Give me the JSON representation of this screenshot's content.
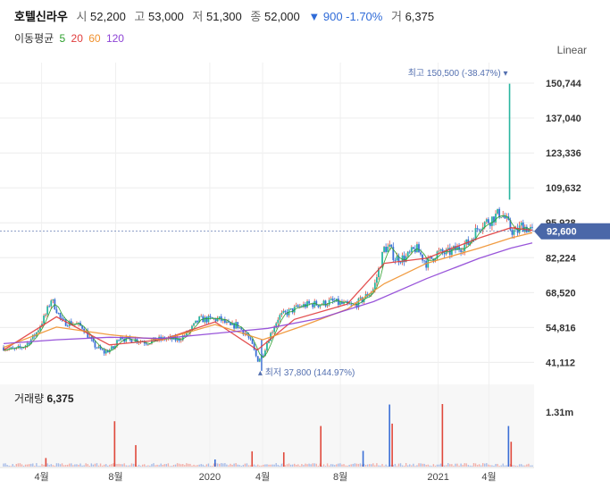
{
  "header": {
    "stock_name": "호텔신라우",
    "open_label": "시",
    "open_value": "52,200",
    "high_label": "고",
    "high_value": "53,000",
    "low_label": "저",
    "low_value": "51,300",
    "close_label": "종",
    "close_value": "52,000",
    "change_value": "▼ 900 -1.70%",
    "volume_label": "거",
    "volume_value": "6,375"
  },
  "moving_average": {
    "label": "이동평균",
    "periods": [
      {
        "text": "5",
        "color": "#2ca02c"
      },
      {
        "text": "20",
        "color": "#e03c3c"
      },
      {
        "text": "60",
        "color": "#f0912e"
      },
      {
        "text": "120",
        "color": "#8e44d6"
      }
    ]
  },
  "scale_toggle": "Linear",
  "volume_panel": {
    "label": "거래량",
    "value": "6,375",
    "axis_label": "1.31m"
  },
  "colors": {
    "up": "#e0493c",
    "down": "#3b6fd6",
    "up_fill": "#2bb5a0",
    "current_price_tag": "#4a67a8",
    "background": "#ffffff"
  },
  "chart_data": {
    "type": "candlestick",
    "y_axis": {
      "ticks": [
        "150,744",
        "137,040",
        "123,336",
        "109,632",
        "95,928",
        "82,224",
        "68,520",
        "54,816",
        "41,112"
      ],
      "tick_values": [
        150744,
        137040,
        123336,
        109632,
        95928,
        82224,
        68520,
        54816,
        41112
      ],
      "ylim": [
        36000,
        156000
      ]
    },
    "x_axis": {
      "ticks": [
        "4월",
        "8월",
        "2020",
        "4월",
        "8월",
        "2021",
        "4월"
      ],
      "tick_positions": [
        0.072,
        0.212,
        0.39,
        0.49,
        0.637,
        0.822,
        0.918
      ]
    },
    "current_price": {
      "label": "92,600",
      "value": 92600
    },
    "annotations": {
      "high": {
        "text": "최고 150,500 (-38.47%)",
        "value": 150500,
        "x": 0.957
      },
      "low": {
        "text": "최저 37,800 (144.97%)",
        "value": 37800,
        "x": 0.488
      }
    },
    "close_series": {
      "x": [
        0,
        0.02,
        0.04,
        0.06,
        0.08,
        0.09,
        0.1,
        0.11,
        0.13,
        0.15,
        0.17,
        0.19,
        0.21,
        0.22,
        0.23,
        0.25,
        0.27,
        0.29,
        0.31,
        0.33,
        0.35,
        0.37,
        0.39,
        0.41,
        0.43,
        0.44,
        0.46,
        0.47,
        0.48,
        0.49,
        0.5,
        0.52,
        0.54,
        0.56,
        0.58,
        0.6,
        0.62,
        0.64,
        0.66,
        0.68,
        0.7,
        0.72,
        0.73,
        0.74,
        0.76,
        0.78,
        0.8,
        0.82,
        0.84,
        0.86,
        0.88,
        0.9,
        0.92,
        0.94,
        0.95,
        0.96,
        0.97,
        0.98,
        1.0
      ],
      "y": [
        47000,
        46000,
        47500,
        52000,
        60000,
        66000,
        62000,
        57000,
        56500,
        55000,
        48000,
        45000,
        47000,
        52000,
        50000,
        50000,
        49000,
        50000,
        50500,
        50000,
        53000,
        58000,
        58000,
        58000,
        55000,
        56000,
        52000,
        48000,
        42000,
        44000,
        50000,
        59000,
        61000,
        63000,
        64000,
        64000,
        65000,
        64000,
        63000,
        66000,
        70000,
        86000,
        86000,
        82000,
        82000,
        86000,
        80000,
        84000,
        84000,
        86000,
        88000,
        95000,
        97000,
        100000,
        97000,
        93000,
        92000,
        95000,
        92600
      ]
    },
    "moving_averages": [
      {
        "name": "5",
        "color": "#2ca02c"
      },
      {
        "name": "20",
        "color": "#e03c3c",
        "x": [
          0,
          0.1,
          0.2,
          0.3,
          0.4,
          0.48,
          0.55,
          0.65,
          0.72,
          0.8,
          0.9,
          0.96,
          1.0
        ],
        "y": [
          46000,
          59000,
          48000,
          50000,
          57000,
          46000,
          58000,
          64000,
          80000,
          82000,
          90000,
          94000,
          93000
        ]
      },
      {
        "name": "60",
        "color": "#f0912e",
        "x": [
          0,
          0.1,
          0.2,
          0.3,
          0.4,
          0.49,
          0.56,
          0.65,
          0.72,
          0.8,
          0.9,
          0.96,
          1.0
        ],
        "y": [
          47000,
          55000,
          52000,
          50000,
          56000,
          50000,
          55000,
          62000,
          72000,
          80000,
          86000,
          90000,
          92000
        ]
      },
      {
        "name": "120",
        "color": "#8e44d6",
        "x": [
          0,
          0.1,
          0.2,
          0.3,
          0.4,
          0.5,
          0.6,
          0.7,
          0.8,
          0.9,
          0.96,
          1.0
        ],
        "y": [
          48500,
          50000,
          51000,
          50500,
          52500,
          54500,
          58500,
          65000,
          74000,
          82000,
          86000,
          88000
        ]
      }
    ],
    "volume": {
      "max": 1310000,
      "spikes": [
        {
          "x": 0.08,
          "value": 180000,
          "color": "#e0493c"
        },
        {
          "x": 0.21,
          "value": 950000,
          "color": "#e0493c"
        },
        {
          "x": 0.25,
          "value": 450000,
          "color": "#e0493c"
        },
        {
          "x": 0.4,
          "value": 150000,
          "color": "#3b6fd6"
        },
        {
          "x": 0.47,
          "value": 320000,
          "color": "#e0493c"
        },
        {
          "x": 0.53,
          "value": 300000,
          "color": "#e0493c"
        },
        {
          "x": 0.6,
          "value": 850000,
          "color": "#e0493c"
        },
        {
          "x": 0.68,
          "value": 330000,
          "color": "#3b6fd6"
        },
        {
          "x": 0.73,
          "value": 1300000,
          "color": "#3b6fd6"
        },
        {
          "x": 0.735,
          "value": 900000,
          "color": "#e0493c"
        },
        {
          "x": 0.83,
          "value": 1310000,
          "color": "#e0493c"
        },
        {
          "x": 0.955,
          "value": 850000,
          "color": "#3b6fd6"
        },
        {
          "x": 0.96,
          "value": 520000,
          "color": "#e0493c"
        }
      ]
    }
  }
}
